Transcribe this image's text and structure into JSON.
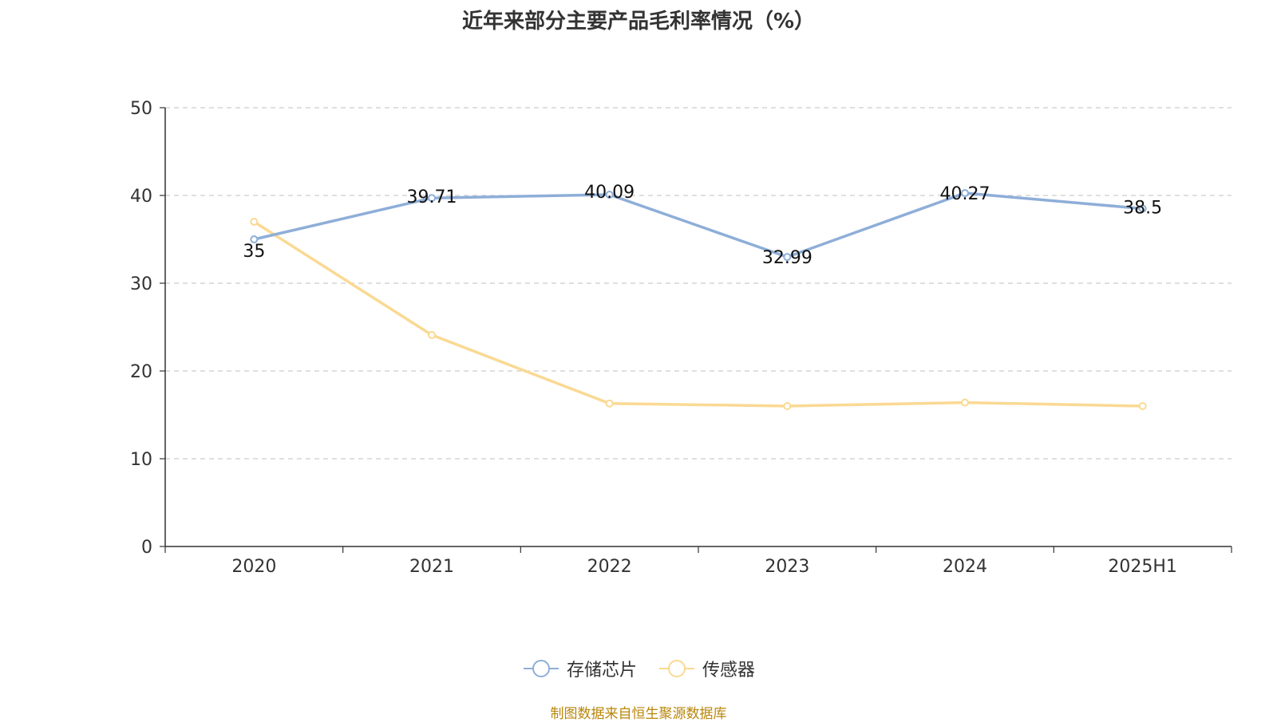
{
  "chart_data": {
    "type": "line",
    "title": "近年来部分主要产品毛利率情况（%）",
    "categories": [
      "2020",
      "2021",
      "2022",
      "2023",
      "2024",
      "2025H1"
    ],
    "ylim": [
      0,
      50
    ],
    "yticks": [
      0,
      10,
      20,
      30,
      40,
      50
    ],
    "grid": true,
    "legend_position": "bottom-center",
    "series": [
      {
        "name": "存储芯片",
        "color": "#8eaed8",
        "values": [
          35,
          39.71,
          40.09,
          32.99,
          40.27,
          38.5
        ],
        "show_labels": true
      },
      {
        "name": "传感器",
        "color": "#fad993",
        "values": [
          37.0,
          24.1,
          16.3,
          16.0,
          16.4,
          16.0
        ],
        "show_labels": false
      }
    ],
    "source": "制图数据来自恒生聚源数据库"
  }
}
